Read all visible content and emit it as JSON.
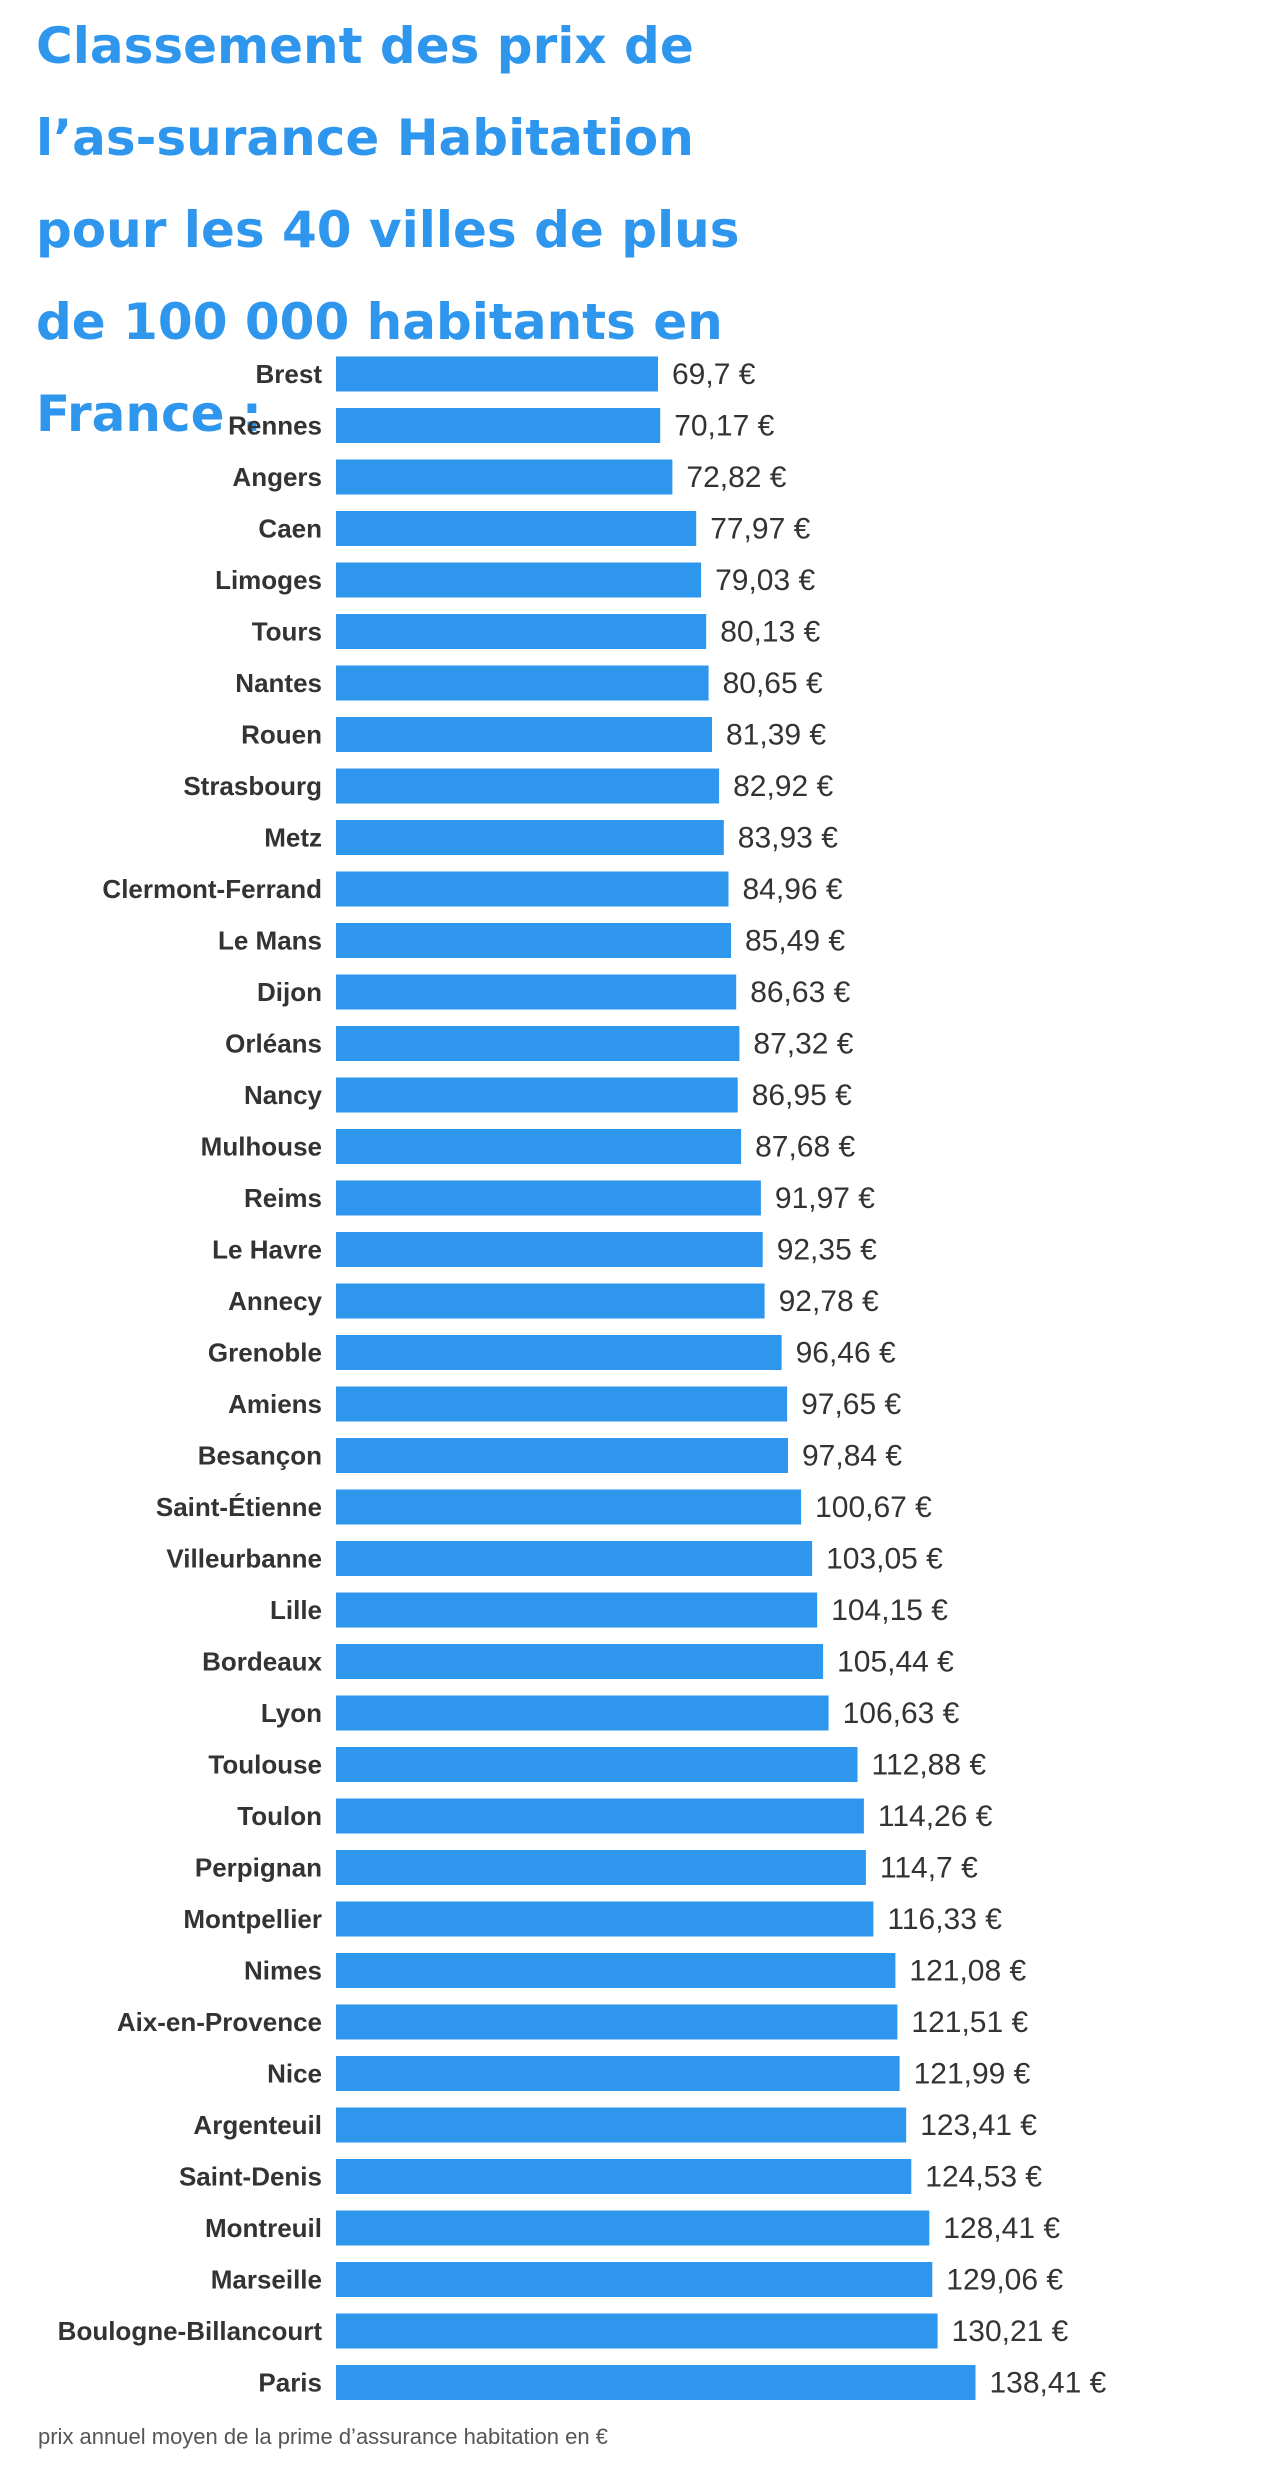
{
  "title": "Classement des prix de l’as-surance Habitation pour les 40 villes de plus de 100 000 habitants en France :",
  "footnote": "prix annuel moyen de la prime d’assurance habitation en €",
  "colors": {
    "title": "#2f96ee",
    "bar": "#2f96ee",
    "text": "#333333"
  },
  "chart_data": {
    "type": "bar",
    "orientation": "horizontal",
    "title": "Classement des prix de l’as-surance Habitation pour les 40 villes de plus de 100 000 habitants en France :",
    "xlabel": "",
    "ylabel": "",
    "grid": false,
    "legend": "none",
    "categories": [
      "Brest",
      "Rennes",
      "Angers",
      "Caen",
      "Limoges",
      "Tours",
      "Nantes",
      "Rouen",
      "Strasbourg",
      "Metz",
      "Clermont-Ferrand",
      "Le Mans",
      "Dijon",
      "Orléans",
      "Nancy",
      "Mulhouse",
      "Reims",
      "Le Havre",
      "Annecy",
      "Grenoble",
      "Amiens",
      "Besançon",
      "Saint-Étienne",
      "Villeurbanne",
      "Lille",
      "Bordeaux",
      "Lyon",
      "Toulouse",
      "Toulon",
      "Perpignan",
      "Montpellier",
      "Nimes",
      "Aix-en-Provence",
      "Nice",
      "Argenteuil",
      "Saint-Denis",
      "Montreuil",
      "Marseille",
      "Boulogne-Billancourt",
      "Paris"
    ],
    "values": [
      69.7,
      70.17,
      72.82,
      77.97,
      79.03,
      80.13,
      80.65,
      81.39,
      82.92,
      83.93,
      84.96,
      85.49,
      86.63,
      87.32,
      86.95,
      87.68,
      91.97,
      92.35,
      92.78,
      96.46,
      97.65,
      97.84,
      100.67,
      103.05,
      104.15,
      105.44,
      106.63,
      112.88,
      114.26,
      114.7,
      116.33,
      121.08,
      121.51,
      121.99,
      123.41,
      124.53,
      128.41,
      129.06,
      130.21,
      138.41
    ],
    "value_labels": [
      "69,7 €",
      "70,17 €",
      "72,82 €",
      "77,97 €",
      "79,03 €",
      "80,13 €",
      "80,65 €",
      "81,39 €",
      "82,92 €",
      "83,93 €",
      "84,96 €",
      "85,49 €",
      "86,63 €",
      "87,32 €",
      "86,95 €",
      "87,68 €",
      "91,97 €",
      "92,35 €",
      "92,78 €",
      "96,46 €",
      "97,65 €",
      "97,84 €",
      "100,67 €",
      "103,05 €",
      "104,15 €",
      "105,44 €",
      "106,63 €",
      "112,88 €",
      "114,26 €",
      "114,7 €",
      "116,33 €",
      "121,08 €",
      "121,51 €",
      "121,99 €",
      "123,41 €",
      "124,53 €",
      "128,41 €",
      "129,06 €",
      "130,21 €",
      "138,41 €"
    ]
  }
}
